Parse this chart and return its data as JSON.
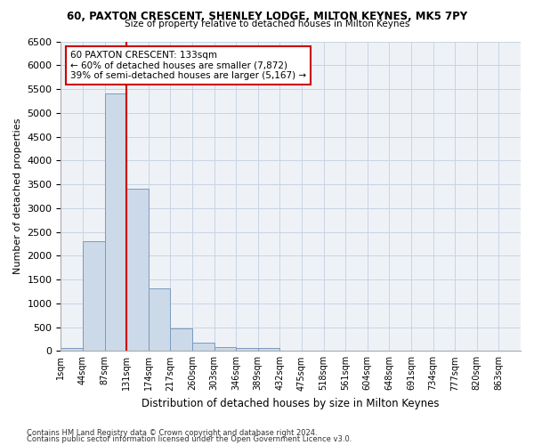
{
  "title": "60, PAXTON CRESCENT, SHENLEY LODGE, MILTON KEYNES, MK5 7PY",
  "subtitle": "Size of property relative to detached houses in Milton Keynes",
  "xlabel": "Distribution of detached houses by size in Milton Keynes",
  "ylabel": "Number of detached properties",
  "footnote1": "Contains HM Land Registry data © Crown copyright and database right 2024.",
  "footnote2": "Contains public sector information licensed under the Open Government Licence v3.0.",
  "bin_labels": [
    "1sqm",
    "44sqm",
    "87sqm",
    "131sqm",
    "174sqm",
    "217sqm",
    "260sqm",
    "303sqm",
    "346sqm",
    "389sqm",
    "432sqm",
    "475sqm",
    "518sqm",
    "561sqm",
    "604sqm",
    "648sqm",
    "691sqm",
    "734sqm",
    "777sqm",
    "820sqm",
    "863sqm"
  ],
  "bar_values": [
    70,
    2300,
    5400,
    3400,
    1320,
    480,
    175,
    75,
    55,
    55,
    10,
    5,
    2,
    1,
    0,
    0,
    0,
    0,
    0,
    0,
    0
  ],
  "bar_facecolor": "#ccd9e8",
  "bar_edgecolor": "#7a9bbf",
  "grid_color": "#c8d4e3",
  "background_color": "#eef2f7",
  "vline_pos": 3,
  "vline_color": "#cc0000",
  "annotation_text": "60 PAXTON CRESCENT: 133sqm\n← 60% of detached houses are smaller (7,872)\n39% of semi-detached houses are larger (5,167) →",
  "annotation_box_edgecolor": "#cc0000",
  "ylim": [
    0,
    6500
  ],
  "yticks": [
    0,
    500,
    1000,
    1500,
    2000,
    2500,
    3000,
    3500,
    4000,
    4500,
    5000,
    5500,
    6000,
    6500
  ],
  "figsize": [
    6.0,
    5.0
  ],
  "dpi": 100
}
